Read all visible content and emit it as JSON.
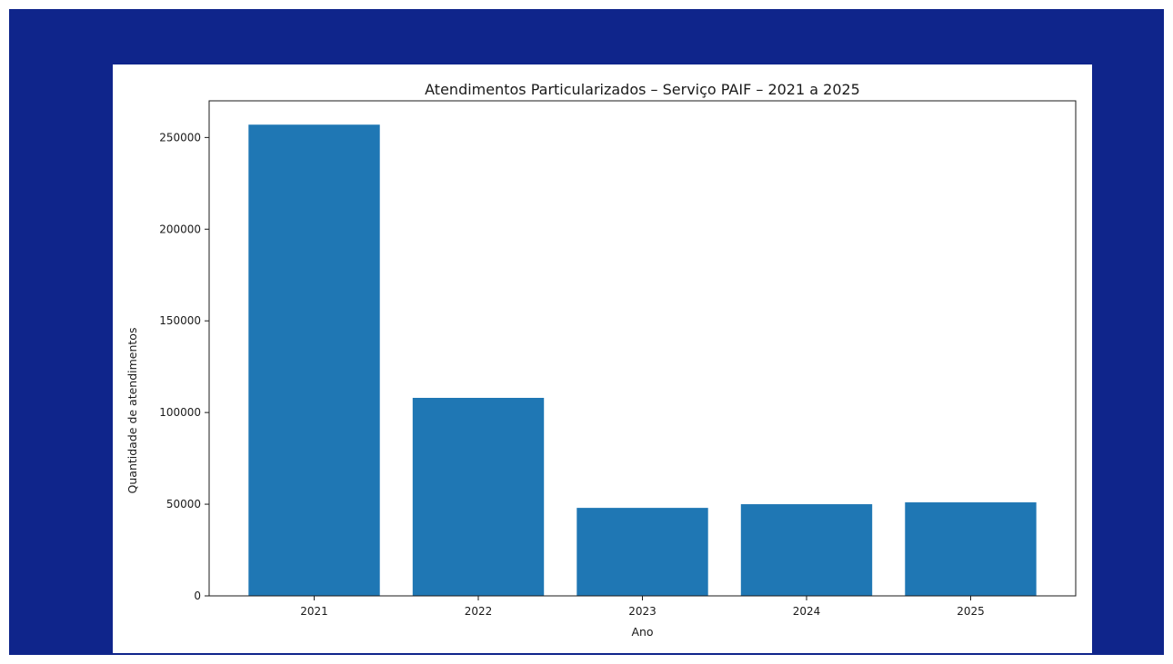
{
  "page": {
    "background_color": "#0f258b",
    "card_color": "#ffffff"
  },
  "chart_data": {
    "type": "bar",
    "title": "Atendimentos Particularizados – Serviço PAIF – 2021 a 2025",
    "xlabel": "Ano",
    "ylabel": "Quantidade de atendimentos",
    "categories": [
      "2021",
      "2022",
      "2023",
      "2024",
      "2025"
    ],
    "values": [
      257000,
      108000,
      48000,
      50000,
      51000
    ],
    "ylim": [
      0,
      270000
    ],
    "yticks": [
      0,
      50000,
      100000,
      150000,
      200000,
      250000
    ],
    "ytick_labels": [
      "0",
      "50000",
      "100000",
      "150000",
      "200000",
      "250000"
    ],
    "bar_color": "#1f77b4",
    "grid": false,
    "legend": "none"
  }
}
